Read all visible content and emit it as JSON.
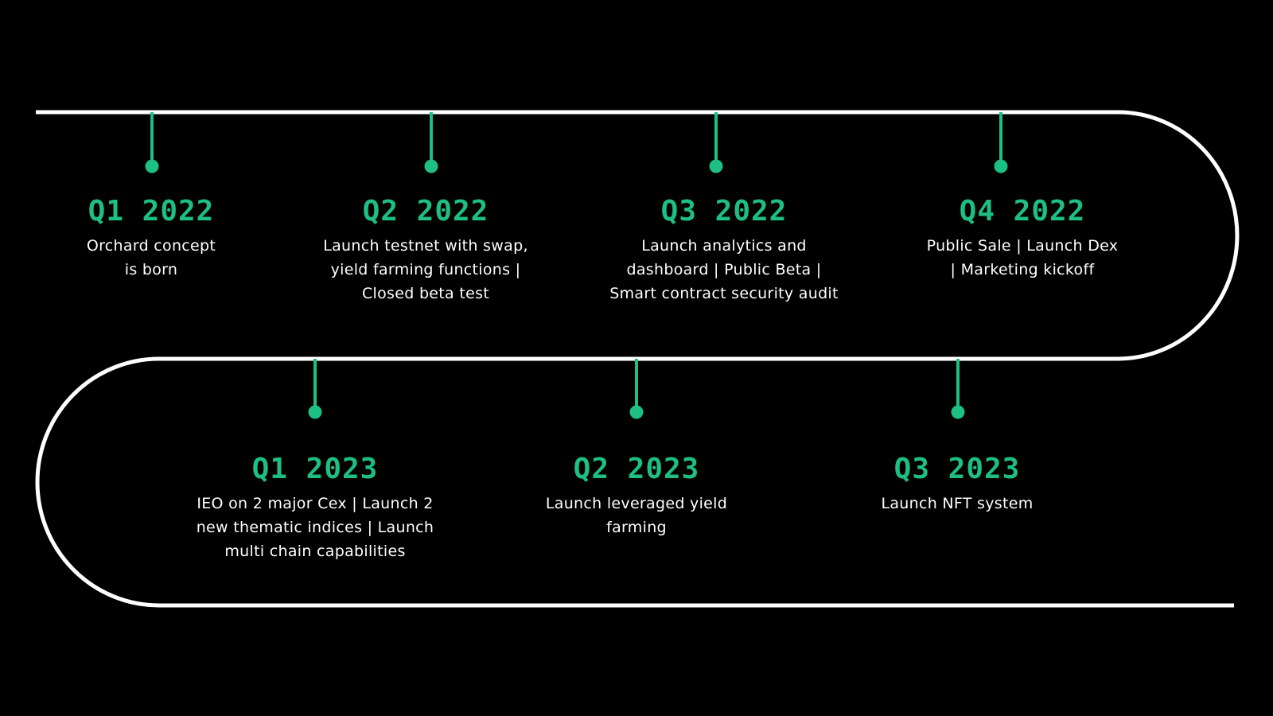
{
  "colors": {
    "background": "#000000",
    "track": "#ffffff",
    "accent": "#1dbf83",
    "text": "#ffffff"
  },
  "milestones": [
    {
      "quarter": "Q1 2022",
      "lines": [
        "Orchard concept",
        "is born"
      ]
    },
    {
      "quarter": "Q2 2022",
      "lines": [
        "Launch testnet with swap,",
        "yield farming functions |",
        "Closed beta test"
      ]
    },
    {
      "quarter": "Q3 2022",
      "lines": [
        "Launch analytics and",
        "dashboard | Public Beta |",
        "Smart contract security audit"
      ]
    },
    {
      "quarter": "Q4 2022",
      "lines": [
        "Public Sale | Launch Dex",
        "| Marketing kickoff"
      ]
    },
    {
      "quarter": "Q1 2023",
      "lines": [
        "IEO on 2 major Cex | Launch 2",
        "new thematic indices | Launch",
        "multi chain capabilities"
      ]
    },
    {
      "quarter": "Q2 2023",
      "lines": [
        "Launch leveraged yield",
        "farming"
      ]
    },
    {
      "quarter": "Q3 2023",
      "lines": [
        "Launch NFT system"
      ]
    }
  ]
}
